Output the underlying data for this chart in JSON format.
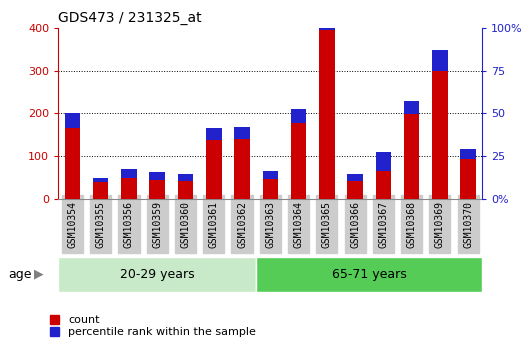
{
  "title": "GDS473 / 231325_at",
  "samples": [
    "GSM10354",
    "GSM10355",
    "GSM10356",
    "GSM10359",
    "GSM10360",
    "GSM10361",
    "GSM10362",
    "GSM10363",
    "GSM10364",
    "GSM10365",
    "GSM10366",
    "GSM10367",
    "GSM10368",
    "GSM10369",
    "GSM10370"
  ],
  "count_values": [
    165,
    40,
    50,
    45,
    42,
    138,
    140,
    48,
    178,
    395,
    42,
    65,
    198,
    298,
    95
  ],
  "blue_values": [
    35,
    10,
    20,
    18,
    16,
    28,
    28,
    18,
    32,
    60,
    16,
    46,
    32,
    50,
    23
  ],
  "ylim": [
    0,
    400
  ],
  "y2lim": [
    0,
    100
  ],
  "yticks": [
    0,
    100,
    200,
    300,
    400
  ],
  "y2ticks": [
    0,
    25,
    50,
    75,
    100
  ],
  "y2ticklabels": [
    "0%",
    "25",
    "50",
    "75",
    "100%"
  ],
  "group1_label": "20-29 years",
  "group2_label": "65-71 years",
  "group1_indices": [
    0,
    1,
    2,
    3,
    4,
    5,
    6
  ],
  "group2_indices": [
    7,
    8,
    9,
    10,
    11,
    12,
    13,
    14
  ],
  "age_label": "age",
  "legend_count": "count",
  "legend_pct": "percentile rank within the sample",
  "count_color": "#cc0000",
  "pct_color": "#2222cc",
  "group1_bg": "#c8eac8",
  "group2_bg": "#55cc55",
  "tick_bg": "#cccccc",
  "grid_color": "#000000",
  "left_axis_color": "#cc0000",
  "right_axis_color": "#2222cc",
  "bar_width": 0.55
}
